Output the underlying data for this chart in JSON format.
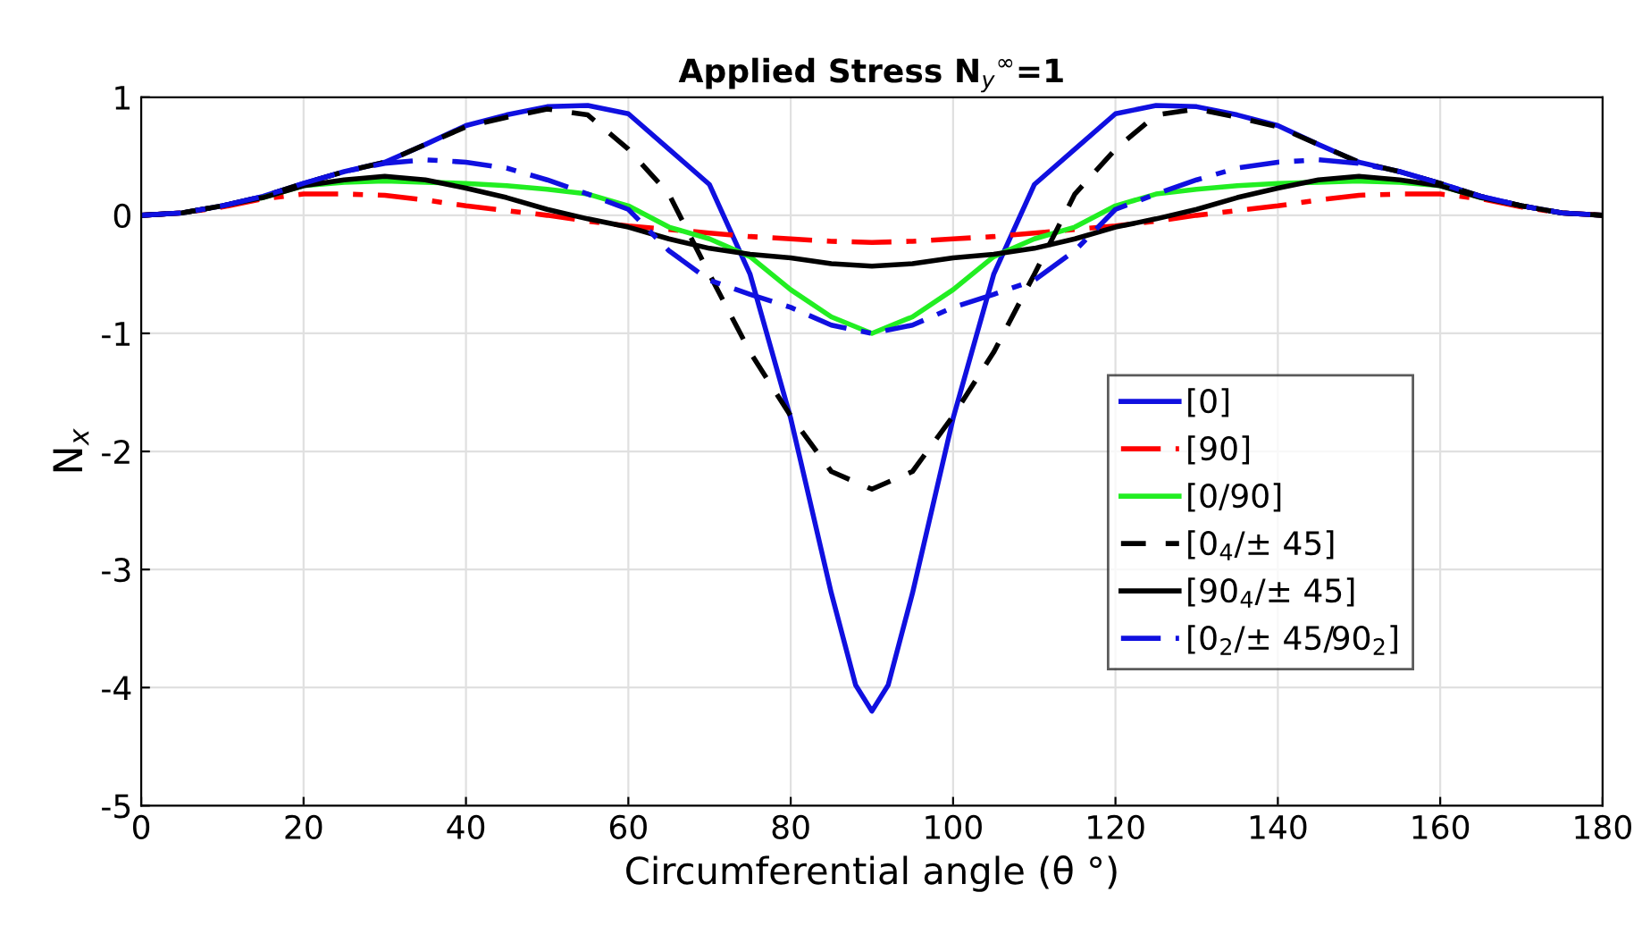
{
  "chart_data": {
    "type": "line",
    "title": "Applied Stress N$_{y}$$^{∞}$=1",
    "xlabel": "Circumferential angle (θ °)",
    "ylabel": "N$_{x}$",
    "x": [
      0,
      5,
      10,
      15,
      20,
      25,
      30,
      35,
      40,
      45,
      50,
      55,
      60,
      65,
      70,
      75,
      80,
      85,
      90,
      95,
      100,
      105,
      110,
      115,
      120,
      125,
      130,
      135,
      140,
      145,
      150,
      155,
      160,
      165,
      170,
      175,
      180
    ],
    "xlim": [
      0,
      180
    ],
    "xticks": [
      0,
      20,
      40,
      60,
      80,
      100,
      120,
      140,
      160,
      180
    ],
    "ylim": [
      -5,
      1
    ],
    "yticks": [
      -5,
      -4,
      -3,
      -2,
      -1,
      0,
      1
    ],
    "grid": true,
    "legend": "right",
    "series": [
      {
        "name": "[0]",
        "color": "#1010e0",
        "line_style": "solid",
        "x": [
          0,
          5,
          10,
          15,
          20,
          25,
          30,
          35,
          40,
          45,
          50,
          55,
          60,
          65,
          70,
          75,
          80,
          85,
          88,
          90,
          92,
          95,
          100,
          105,
          110,
          115,
          120,
          125,
          130,
          135,
          140,
          145,
          150,
          155,
          160,
          165,
          170,
          175,
          180
        ],
        "values": [
          0,
          0.02,
          0.08,
          0.16,
          0.27,
          0.37,
          0.45,
          0.6,
          0.76,
          0.85,
          0.92,
          0.93,
          0.86,
          0.56,
          0.26,
          -0.5,
          -1.72,
          -3.2,
          -3.98,
          -4.2,
          -3.98,
          -3.2,
          -1.72,
          -0.5,
          0.26,
          0.56,
          0.86,
          0.93,
          0.92,
          0.85,
          0.76,
          0.6,
          0.45,
          0.37,
          0.27,
          0.16,
          0.08,
          0.02,
          0
        ]
      },
      {
        "name": "[90]",
        "color": "#ff0000",
        "line_style": "dashdot",
        "values": [
          0,
          0.02,
          0.07,
          0.14,
          0.18,
          0.18,
          0.17,
          0.13,
          0.08,
          0.04,
          0,
          -0.05,
          -0.09,
          -0.12,
          -0.15,
          -0.18,
          -0.2,
          -0.22,
          -0.23,
          -0.22,
          -0.2,
          -0.18,
          -0.15,
          -0.12,
          -0.09,
          -0.05,
          0,
          0.04,
          0.08,
          0.13,
          0.17,
          0.18,
          0.18,
          0.14,
          0.07,
          0.02,
          0
        ]
      },
      {
        "name": "[0/90]",
        "color": "#22ee22",
        "line_style": "solid",
        "values": [
          null,
          null,
          null,
          0.15,
          0.25,
          0.28,
          0.29,
          0.28,
          0.27,
          0.25,
          0.22,
          0.18,
          0.08,
          -0.1,
          -0.2,
          -0.35,
          -0.63,
          -0.86,
          -1.0,
          -0.86,
          -0.63,
          -0.35,
          -0.2,
          -0.1,
          0.08,
          0.18,
          0.22,
          0.25,
          0.27,
          0.28,
          0.29,
          0.28,
          0.25,
          0.15,
          null,
          null,
          null
        ]
      },
      {
        "name": "[0$_{4}$/± 45]",
        "color": "#000000",
        "line_style": "dashed",
        "values": [
          0,
          0.02,
          0.08,
          0.16,
          0.27,
          0.37,
          0.45,
          0.6,
          0.75,
          0.83,
          0.9,
          0.85,
          0.56,
          0.18,
          -0.5,
          -1.16,
          -1.7,
          -2.17,
          -2.32,
          -2.17,
          -1.7,
          -1.16,
          -0.5,
          0.18,
          0.56,
          0.85,
          0.9,
          0.83,
          0.75,
          0.6,
          0.45,
          0.37,
          0.27,
          0.16,
          0.08,
          0.02,
          0
        ]
      },
      {
        "name": "[90$_{4}$/± 45]",
        "color": "#000000",
        "line_style": "solid",
        "values": [
          0,
          0.02,
          0.08,
          0.15,
          0.25,
          0.3,
          0.33,
          0.3,
          0.23,
          0.15,
          0.05,
          -0.03,
          -0.1,
          -0.2,
          -0.28,
          -0.33,
          -0.36,
          -0.41,
          -0.43,
          -0.41,
          -0.36,
          -0.33,
          -0.28,
          -0.2,
          -0.1,
          -0.03,
          0.05,
          0.15,
          0.23,
          0.3,
          0.33,
          0.3,
          0.25,
          0.15,
          0.08,
          0.02,
          0
        ]
      },
      {
        "name": "[0$_{2}$/± 45/90$_{2}$]",
        "color": "#1010e0",
        "line_style": "dashdot",
        "values": [
          0,
          0.02,
          0.08,
          0.16,
          0.27,
          0.37,
          0.44,
          0.47,
          0.45,
          0.4,
          0.3,
          0.18,
          0.05,
          -0.3,
          -0.55,
          -0.67,
          -0.78,
          -0.93,
          -1.0,
          -0.93,
          -0.78,
          -0.67,
          -0.55,
          -0.3,
          0.05,
          0.18,
          0.3,
          0.4,
          0.45,
          0.47,
          0.44,
          0.37,
          0.27,
          0.16,
          0.08,
          0.02,
          0
        ]
      }
    ]
  }
}
